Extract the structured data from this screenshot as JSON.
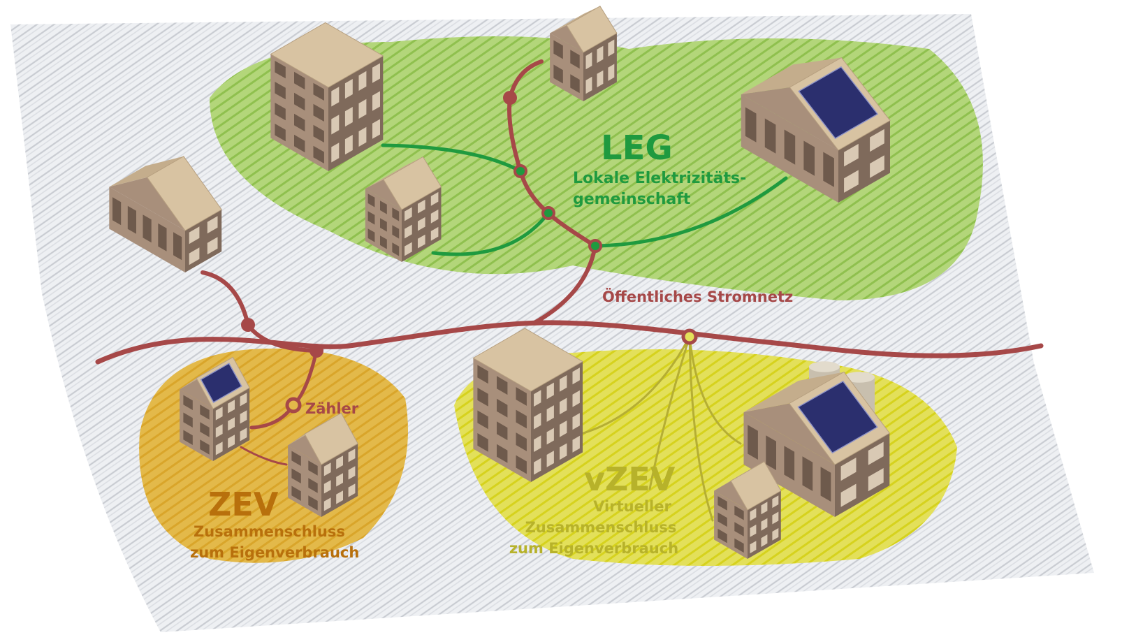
{
  "labels": {
    "leg": {
      "title": "LEG",
      "subtitle": [
        "Lokale Elektrizitäts-",
        "gemeinschaft"
      ]
    },
    "grid": "Öffentliches Stromnetz",
    "meter": "Zähler",
    "zev": {
      "title": "ZEV",
      "subtitle": [
        "Zusammenschluss",
        "zum Eigenverbrauch"
      ]
    },
    "vzev": {
      "title": "vZEV",
      "subtitle": [
        "Virtueller",
        "Zusammenschluss",
        "zum Eigenverbrauch"
      ]
    }
  }
}
